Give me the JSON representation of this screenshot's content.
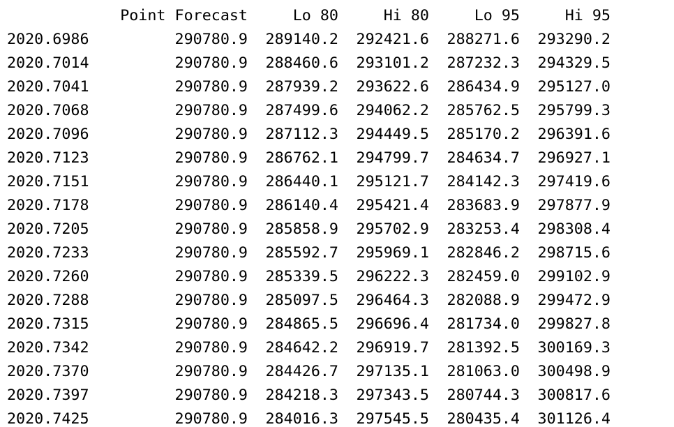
{
  "console": {
    "accent_color": "#1a1ae6",
    "columns": [
      "",
      "Point Forecast",
      "Lo 80",
      "Hi 80",
      "Lo 95",
      "Hi 95"
    ],
    "rows": [
      [
        "2020.6986",
        "290780.9",
        "289140.2",
        "292421.6",
        "288271.6",
        "293290.2"
      ],
      [
        "2020.7014",
        "290780.9",
        "288460.6",
        "293101.2",
        "287232.3",
        "294329.5"
      ],
      [
        "2020.7041",
        "290780.9",
        "287939.2",
        "293622.6",
        "286434.9",
        "295127.0"
      ],
      [
        "2020.7068",
        "290780.9",
        "287499.6",
        "294062.2",
        "285762.5",
        "295799.3"
      ],
      [
        "2020.7096",
        "290780.9",
        "287112.3",
        "294449.5",
        "285170.2",
        "296391.6"
      ],
      [
        "2020.7123",
        "290780.9",
        "286762.1",
        "294799.7",
        "284634.7",
        "296927.1"
      ],
      [
        "2020.7151",
        "290780.9",
        "286440.1",
        "295121.7",
        "284142.3",
        "297419.6"
      ],
      [
        "2020.7178",
        "290780.9",
        "286140.4",
        "295421.4",
        "283683.9",
        "297877.9"
      ],
      [
        "2020.7205",
        "290780.9",
        "285858.9",
        "295702.9",
        "283253.4",
        "298308.4"
      ],
      [
        "2020.7233",
        "290780.9",
        "285592.7",
        "295969.1",
        "282846.2",
        "298715.6"
      ],
      [
        "2020.7260",
        "290780.9",
        "285339.5",
        "296222.3",
        "282459.0",
        "299102.9"
      ],
      [
        "2020.7288",
        "290780.9",
        "285097.5",
        "296464.3",
        "282088.9",
        "299472.9"
      ],
      [
        "2020.7315",
        "290780.9",
        "284865.5",
        "296696.4",
        "281734.0",
        "299827.8"
      ],
      [
        "2020.7342",
        "290780.9",
        "284642.2",
        "296919.7",
        "281392.5",
        "300169.3"
      ],
      [
        "2020.7370",
        "290780.9",
        "284426.7",
        "297135.1",
        "281063.0",
        "300498.9"
      ],
      [
        "2020.7397",
        "290780.9",
        "284218.3",
        "297343.5",
        "280744.3",
        "300817.6"
      ],
      [
        "2020.7425",
        "290780.9",
        "284016.3",
        "297545.5",
        "280435.4",
        "301126.4"
      ]
    ]
  }
}
